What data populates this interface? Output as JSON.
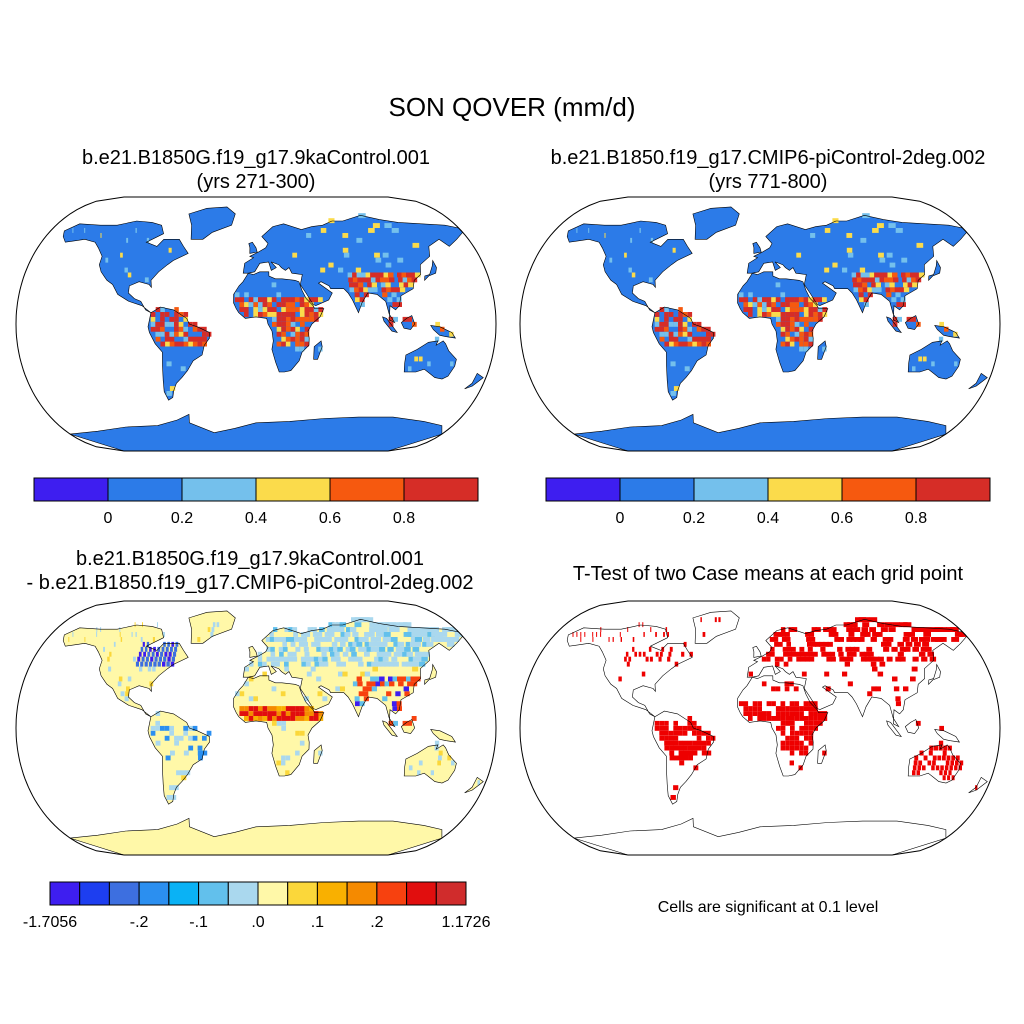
{
  "title": "SON QOVER (mm/d)",
  "panels": {
    "case1": {
      "title_line1": "b.e21.B1850G.f19_g17.9kaControl.001",
      "title_line2": "(yrs 271-300)"
    },
    "case2": {
      "title_line1": "b.e21.B1850.f19_g17.CMIP6-piControl-2deg.002",
      "title_line2": "(yrs 771-800)"
    },
    "diff": {
      "title_line1": "b.e21.B1850G.f19_g17.9kaControl.001",
      "title_line2": "- b.e21.B1850.f19_g17.CMIP6-piControl-2deg.002"
    },
    "ttest": {
      "title": "T-Test of two Case means at each grid point",
      "note": "Cells are significant at 0.1 level"
    }
  },
  "colorbars": {
    "case": {
      "colors": [
        "#3e1ef0",
        "#2c7be8",
        "#74c0ec",
        "#fbdb4b",
        "#f6590f",
        "#d62d27"
      ],
      "labels": [
        "0",
        "0.2",
        "0.4",
        "0.6",
        "0.8"
      ]
    },
    "diff": {
      "colors": [
        "#3e1ef0",
        "#1d3ef0",
        "#3d6fe0",
        "#2b8ff0",
        "#0ab2f5",
        "#62c0ec",
        "#aad8ee",
        "#fff8a8",
        "#fbd73a",
        "#f9b000",
        "#f58a00",
        "#f7410f",
        "#e10e0e",
        "#d02c2c"
      ],
      "labels": [
        "-1.7056",
        "-.2",
        "-.1",
        ".0",
        ".1",
        ".2",
        "1.1726"
      ]
    }
  },
  "map_colors": {
    "land_case": "#2c7be8",
    "land_diff": "#fff8a8",
    "significant": "#ee0000"
  }
}
